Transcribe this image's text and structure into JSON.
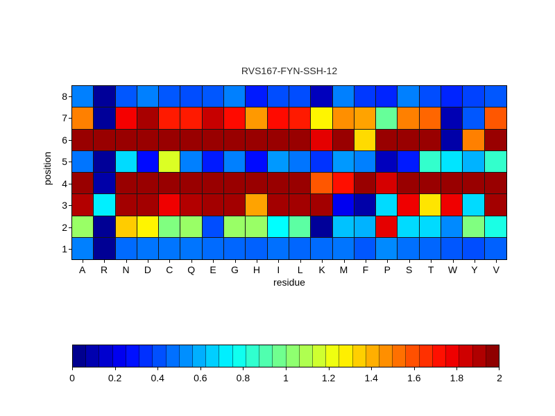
{
  "chart_data": {
    "type": "heatmap",
    "title": "RVS167-FYN-SSH-12",
    "xlabel": "residue",
    "ylabel": "position",
    "columns": [
      "A",
      "R",
      "N",
      "D",
      "C",
      "Q",
      "E",
      "G",
      "H",
      "I",
      "L",
      "K",
      "M",
      "F",
      "P",
      "S",
      "T",
      "W",
      "Y",
      "V"
    ],
    "rows": [
      "8",
      "7",
      "6",
      "5",
      "4",
      "3",
      "2",
      "1"
    ],
    "values": [
      [
        0.5,
        0.05,
        0.42,
        0.5,
        0.42,
        0.4,
        0.42,
        0.5,
        0.3,
        0.4,
        0.4,
        0.12,
        0.5,
        0.36,
        0.32,
        0.5,
        0.4,
        0.32,
        0.38,
        0.42
      ],
      [
        1.5,
        0.05,
        1.77,
        1.92,
        1.7,
        1.7,
        1.86,
        1.73,
        1.45,
        1.73,
        1.7,
        1.27,
        1.47,
        1.43,
        0.95,
        1.5,
        1.55,
        0.1,
        0.42,
        1.58
      ],
      [
        1.95,
        1.95,
        1.95,
        1.95,
        1.95,
        1.95,
        1.95,
        1.95,
        1.95,
        1.95,
        1.95,
        1.8,
        1.95,
        1.32,
        1.95,
        1.95,
        1.95,
        0.08,
        1.5,
        1.95
      ],
      [
        0.48,
        0.05,
        0.68,
        0.27,
        1.18,
        0.5,
        0.3,
        0.5,
        0.27,
        0.55,
        0.48,
        0.35,
        0.55,
        0.5,
        0.12,
        0.3,
        0.85,
        0.7,
        0.6,
        0.85
      ],
      [
        1.95,
        0.08,
        1.95,
        1.95,
        1.95,
        1.95,
        1.95,
        1.95,
        1.95,
        1.95,
        1.95,
        1.58,
        1.72,
        1.95,
        1.83,
        1.95,
        1.95,
        1.95,
        1.95,
        1.95
      ],
      [
        1.9,
        0.72,
        1.93,
        1.93,
        1.78,
        1.9,
        1.93,
        1.93,
        1.43,
        1.93,
        1.93,
        1.93,
        0.22,
        0.08,
        0.68,
        1.78,
        1.3,
        1.78,
        0.68,
        1.93
      ],
      [
        1.05,
        0.04,
        1.35,
        1.27,
        1.0,
        1.05,
        0.4,
        1.05,
        1.05,
        0.75,
        0.93,
        0.05,
        0.63,
        0.6,
        1.8,
        0.68,
        0.68,
        0.52,
        1.0,
        0.8
      ],
      [
        0.5,
        0.04,
        0.46,
        0.48,
        0.48,
        0.48,
        0.46,
        0.45,
        0.44,
        0.47,
        0.45,
        0.46,
        0.48,
        0.42,
        0.52,
        0.47,
        0.45,
        0.42,
        0.4,
        0.44
      ]
    ],
    "value_range": [
      0,
      2
    ],
    "colormap": "jet",
    "colorbar_ticks": [
      "0",
      "0.2",
      "0.4",
      "0.6",
      "0.8",
      "1",
      "1.2",
      "1.4",
      "1.6",
      "1.8",
      "2"
    ],
    "grid_on": true,
    "colorbar_position": "bottom",
    "background_color": "#ffffff",
    "grid_line_color": "#161616"
  }
}
